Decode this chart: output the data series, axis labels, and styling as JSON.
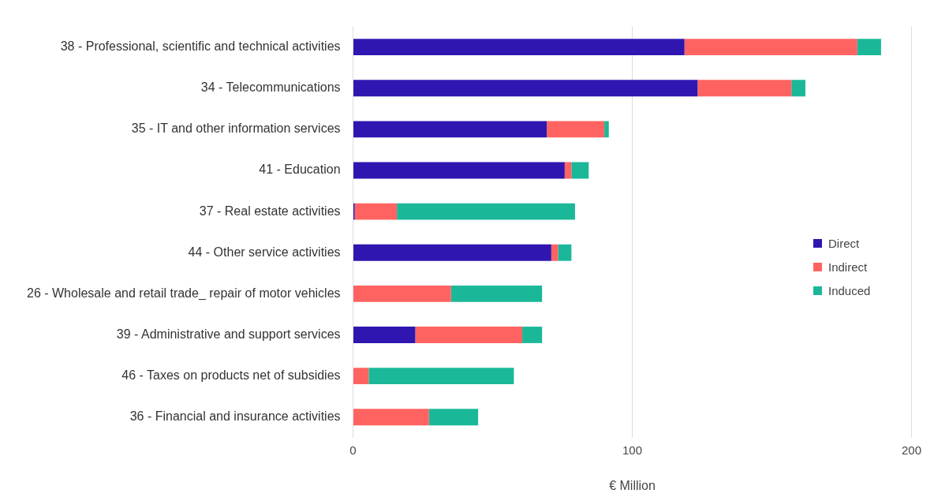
{
  "chart_data": {
    "type": "bar",
    "orientation": "horizontal",
    "stacked": true,
    "xlabel": "€ Million",
    "categories": [
      "38 - Professional, scientific and technical activities",
      "34 - Telecommunications",
      "35 - IT and other information services",
      "41 - Education",
      "37 - Real estate activities",
      "44 - Other service activities",
      "26 - Wholesale and retail trade_ repair of motor vehicles",
      "39 - Administrative and support services",
      "46 - Taxes on products net of subsidies",
      "36 - Financial and insurance activities"
    ],
    "series": [
      {
        "name": "Direct",
        "color": "#3016b0",
        "values": [
          118.7,
          123.4,
          69.4,
          75.8,
          0.6,
          71.0,
          0,
          22.3,
          0,
          0
        ]
      },
      {
        "name": "Indirect",
        "color": "#ff6361",
        "values": [
          61.9,
          33.6,
          20.6,
          2.4,
          15.1,
          2.4,
          35.1,
          38.3,
          5.6,
          27.2
        ]
      },
      {
        "name": "Induced",
        "color": "#1ab899",
        "values": [
          8.5,
          5.0,
          1.6,
          6.2,
          63.8,
          4.8,
          32.6,
          7.1,
          52.0,
          17.6
        ]
      }
    ],
    "xlim": [
      0,
      200
    ],
    "xticks": [
      0,
      100,
      200
    ],
    "grid": "x",
    "legend": "right"
  }
}
